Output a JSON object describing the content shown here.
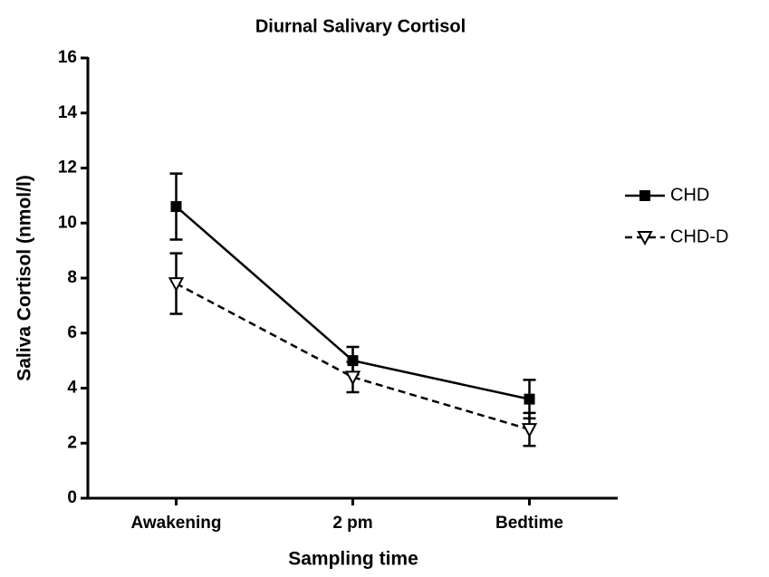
{
  "chart_data": {
    "type": "line",
    "title": "Diurnal Salivary Cortisol",
    "x_label": "Sampling time",
    "y_label": "Saliva Cortisol (nmol/l)",
    "categories": [
      "Awakening",
      "2 pm",
      "Bedtime"
    ],
    "series": [
      {
        "name": "CHD",
        "color": "#000000",
        "values": [
          10.6,
          5.0,
          3.6
        ],
        "errors": [
          1.2,
          0.5,
          0.7
        ],
        "line_style": "solid",
        "marker": "square"
      },
      {
        "name": "CHD-D",
        "color": "#000000",
        "values": [
          7.8,
          4.4,
          2.5
        ],
        "errors": [
          1.1,
          0.55,
          0.6
        ],
        "line_style": "dashed",
        "marker": "triangle-down"
      }
    ],
    "ylim": [
      0,
      16
    ],
    "yticks": [
      0,
      2,
      4,
      6,
      8,
      10,
      12,
      14,
      16
    ],
    "legend": "right"
  }
}
